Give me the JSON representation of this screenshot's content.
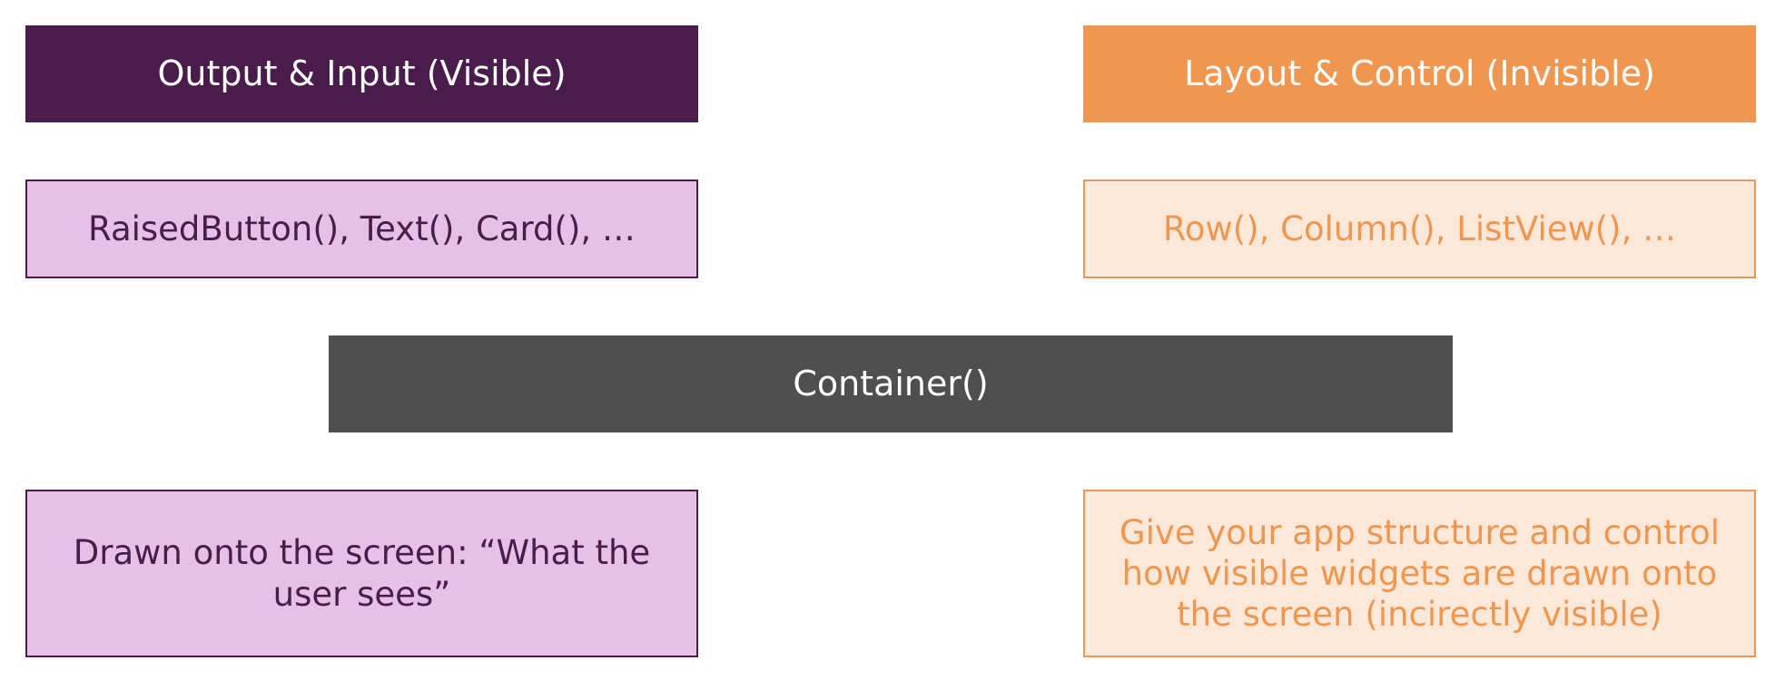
{
  "colors": {
    "visible_dark": "#4a1c4c",
    "visible_light": "#e6c1e7",
    "invisible_dark": "#ef9750",
    "invisible_light": "#fce8d9",
    "container": "#4f4f4f"
  },
  "visible": {
    "header": "Output & Input (Visible)",
    "examples": "RaisedButton(), Text(), Card(), …",
    "description": "Drawn onto the screen: “What the user sees”"
  },
  "invisible": {
    "header": "Layout & Control (Invisible)",
    "examples": "Row(), Column(), ListView(), …",
    "description": "Give your app structure and control how visible widgets are drawn onto the screen (incirectly visible)"
  },
  "center": {
    "label": "Container()"
  }
}
